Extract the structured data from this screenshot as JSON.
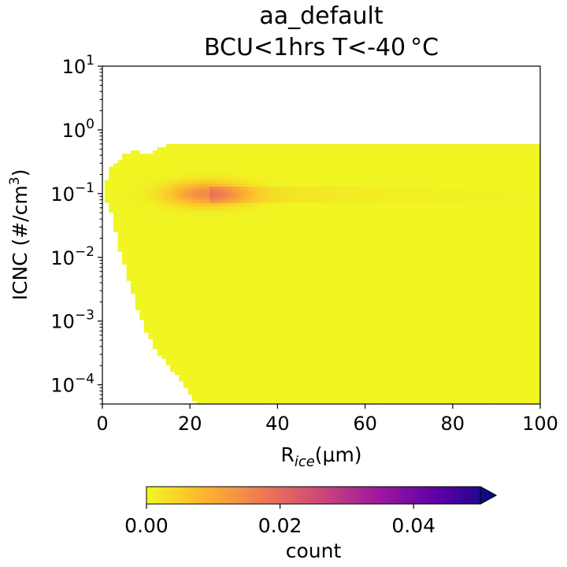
{
  "chart_data": {
    "type": "heatmap",
    "title": "aa_default",
    "subtitle": "BCU<1hrs T<-40 °C",
    "xlabel": {
      "main": "R",
      "sub": "ice",
      "unit": "(μm)"
    },
    "ylabel": {
      "main": "ICNC (#/cm",
      "sup": "3",
      "end": ")"
    },
    "xlim": [
      0,
      100
    ],
    "ylim": [
      5e-05,
      10
    ],
    "y_scale": "log",
    "grid": false,
    "x_ticks": [
      "0",
      "20",
      "40",
      "60",
      "80",
      "100"
    ],
    "x_tick_values": [
      0,
      20,
      40,
      60,
      80,
      100
    ],
    "y_ticks": [
      {
        "value": 10,
        "base": "10",
        "exp": "1"
      },
      {
        "value": 1,
        "base": "10",
        "exp": "0"
      },
      {
        "value": 0.1,
        "base": "10",
        "exp": "−1"
      },
      {
        "value": 0.01,
        "base": "10",
        "exp": "−2"
      },
      {
        "value": 0.001,
        "base": "10",
        "exp": "−3"
      },
      {
        "value": 0.0001,
        "base": "10",
        "exp": "−4"
      }
    ],
    "colorbar": {
      "label": "count",
      "range": [
        0,
        0.05
      ],
      "extend": "max",
      "ticks": [
        "0.00",
        "0.02",
        "0.04"
      ],
      "tick_values": [
        0,
        0.02,
        0.04
      ],
      "colormap": "plasma_r",
      "colors": [
        "#f0f921",
        "#fdb32f",
        "#ed7953",
        "#cc4778",
        "#9c179e",
        "#5c01a6",
        "#0d0887"
      ]
    },
    "data_extent": {
      "x_range": [
        0.5,
        100
      ],
      "y_max": 0.6,
      "lower_boundary": [
        {
          "x": 0.5,
          "y": 0.07
        },
        {
          "x": 1.5,
          "y": 0.07
        },
        {
          "x": 2.5,
          "y": 0.04
        },
        {
          "x": 3.5,
          "y": 0.015
        },
        {
          "x": 5.5,
          "y": 0.006
        },
        {
          "x": 7.5,
          "y": 0.002
        },
        {
          "x": 9,
          "y": 0.001
        },
        {
          "x": 10,
          "y": 0.0007
        },
        {
          "x": 11,
          "y": 0.0005
        },
        {
          "x": 12.5,
          "y": 0.0003
        },
        {
          "x": 14,
          "y": 0.00025
        },
        {
          "x": 15.5,
          "y": 0.00018
        },
        {
          "x": 17,
          "y": 0.00014
        },
        {
          "x": 18.5,
          "y": 0.0001
        },
        {
          "x": 20,
          "y": 7e-05
        },
        {
          "x": 22,
          "y": 5e-05
        }
      ],
      "upper_boundary": [
        {
          "x": 0.5,
          "y": 0.1
        },
        {
          "x": 1.5,
          "y": 0.25
        },
        {
          "x": 3,
          "y": 0.3
        },
        {
          "x": 5,
          "y": 0.4
        },
        {
          "x": 7,
          "y": 0.5
        },
        {
          "x": 10,
          "y": 0.4
        },
        {
          "x": 12,
          "y": 0.5
        },
        {
          "x": 14,
          "y": 0.55
        },
        {
          "x": 15,
          "y": 0.6
        },
        {
          "x": 100,
          "y": 0.6
        }
      ]
    },
    "background_value": 0.0005,
    "hotspot": {
      "x": 24,
      "y": 0.1,
      "peak_value": 0.014
    }
  }
}
